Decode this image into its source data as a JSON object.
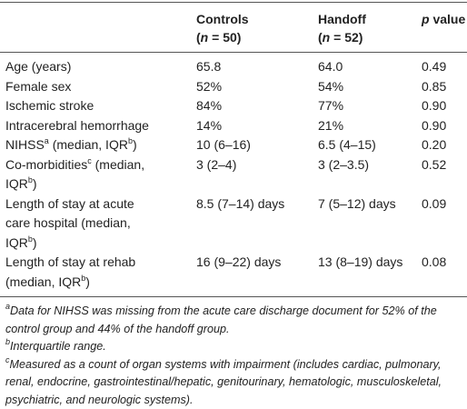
{
  "table": {
    "header": [
      [],
      [
        [
          {
            "text": "Controls"
          }
        ],
        [
          {
            "text": "("
          },
          {
            "text": "n",
            "style": "i"
          },
          {
            "text": " = 50)"
          }
        ]
      ],
      [
        [
          {
            "text": "Handoff"
          }
        ],
        [
          {
            "text": "("
          },
          {
            "text": "n",
            "style": "i"
          },
          {
            "text": " = 52)"
          }
        ]
      ],
      [
        [
          {
            "text": "p",
            "style": "i"
          },
          {
            "text": " value"
          }
        ]
      ]
    ],
    "rows": [
      [
        [
          [
            {
              "text": "Age (years)"
            }
          ]
        ],
        [
          [
            {
              "text": "65.8"
            }
          ]
        ],
        [
          [
            {
              "text": "64.0"
            }
          ]
        ],
        [
          [
            {
              "text": "0.49"
            }
          ]
        ]
      ],
      [
        [
          [
            {
              "text": "Female sex"
            }
          ]
        ],
        [
          [
            {
              "text": "52%"
            }
          ]
        ],
        [
          [
            {
              "text": "54%"
            }
          ]
        ],
        [
          [
            {
              "text": "0.85"
            }
          ]
        ]
      ],
      [
        [
          [
            {
              "text": "Ischemic stroke"
            }
          ]
        ],
        [
          [
            {
              "text": "84%"
            }
          ]
        ],
        [
          [
            {
              "text": "77%"
            }
          ]
        ],
        [
          [
            {
              "text": "0.90"
            }
          ]
        ]
      ],
      [
        [
          [
            {
              "text": "Intracerebral hemorrhage"
            }
          ]
        ],
        [
          [
            {
              "text": "14%"
            }
          ]
        ],
        [
          [
            {
              "text": "21%"
            }
          ]
        ],
        [
          [
            {
              "text": "0.90"
            }
          ]
        ]
      ],
      [
        [
          [
            {
              "text": "NIHSS"
            },
            {
              "text": "a",
              "style": "sup"
            },
            {
              "text": " (median, IQR"
            },
            {
              "text": "b",
              "style": "sup"
            },
            {
              "text": ")"
            }
          ]
        ],
        [
          [
            {
              "text": "10 (6–16)"
            }
          ]
        ],
        [
          [
            {
              "text": "6.5 (4–15)"
            }
          ]
        ],
        [
          [
            {
              "text": "0.20"
            }
          ]
        ]
      ],
      [
        [
          [
            {
              "text": "Co-morbidities"
            },
            {
              "text": "c",
              "style": "sup"
            },
            {
              "text": " (median, IQR"
            },
            {
              "text": "b",
              "style": "sup"
            },
            {
              "text": ")"
            }
          ]
        ],
        [
          [
            {
              "text": "3 (2–4)"
            }
          ]
        ],
        [
          [
            {
              "text": "3 (2–3.5)"
            }
          ]
        ],
        [
          [
            {
              "text": "0.52"
            }
          ]
        ]
      ],
      [
        [
          [
            {
              "text": "Length of stay at acute care hospital (median, IQR"
            },
            {
              "text": "b",
              "style": "sup"
            },
            {
              "text": ")"
            }
          ]
        ],
        [
          [
            {
              "text": "8.5 (7–14) days"
            }
          ]
        ],
        [
          [
            {
              "text": "7 (5–12) days"
            }
          ]
        ],
        [
          [
            {
              "text": "0.09"
            }
          ]
        ]
      ],
      [
        [
          [
            {
              "text": "Length of stay at rehab (median, IQR"
            },
            {
              "text": "b",
              "style": "sup"
            },
            {
              "text": ")"
            }
          ]
        ],
        [
          [
            {
              "text": "16 (9–22) days"
            }
          ]
        ],
        [
          [
            {
              "text": "13 (8–19) days"
            }
          ]
        ],
        [
          [
            {
              "text": "0.08"
            }
          ]
        ]
      ]
    ]
  },
  "footnotes": [
    [
      {
        "text": "a",
        "style": "sup"
      },
      {
        "text": "Data for NIHSS was missing from the acute care discharge document for 52% of the control group and 44% of the handoff group."
      }
    ],
    [
      {
        "text": "b",
        "style": "sup"
      },
      {
        "text": "Interquartile range."
      }
    ],
    [
      {
        "text": "c",
        "style": "sup"
      },
      {
        "text": "Measured as a count of organ systems with impairment (includes cardiac, pulmonary, renal, endocrine, gastrointestinal/hepatic, genitourinary, hematologic, musculoskeletal, psychiatric, and neurologic systems)."
      }
    ]
  ]
}
